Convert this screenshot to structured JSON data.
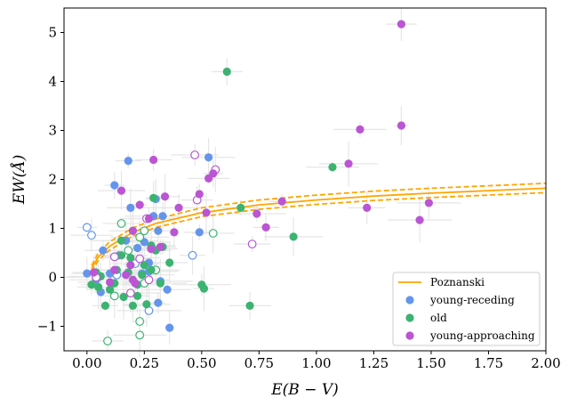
{
  "chart_data": {
    "type": "scatter",
    "title": "",
    "xlabel": "E(B − V)",
    "ylabel": "EW(Å)",
    "xlim": [
      -0.1,
      2.0
    ],
    "ylim": [
      -1.5,
      5.5
    ],
    "xticks": [
      "0.00",
      "0.25",
      "0.50",
      "0.75",
      "1.00",
      "1.25",
      "1.50",
      "1.75",
      "2.00"
    ],
    "yticks": [
      "−1",
      "0",
      "1",
      "2",
      "3",
      "4",
      "5"
    ],
    "grid": false,
    "legend_position": "bottom-right",
    "legend": [
      "Poznanski",
      "young-receding",
      "old",
      "young-approaching"
    ],
    "colors": {
      "poznanski": "#ffa500",
      "young_receding": "#6495ed",
      "old": "#3cb371",
      "young_approaching": "#ba55d3",
      "errorbar": "#e6e6e6"
    },
    "fit_line": {
      "name": "Poznanski",
      "description_type": "log-relation with upper and lower dashed bounds",
      "x": [
        0.02,
        0.05,
        0.1,
        0.2,
        0.3,
        0.5,
        0.75,
        1.0,
        1.25,
        1.5,
        1.75,
        2.0
      ],
      "y": [
        0.18,
        0.42,
        0.64,
        0.92,
        1.1,
        1.32,
        1.48,
        1.58,
        1.66,
        1.72,
        1.77,
        1.82
      ],
      "y_upper": [
        0.24,
        0.5,
        0.73,
        1.01,
        1.19,
        1.42,
        1.58,
        1.68,
        1.76,
        1.82,
        1.87,
        1.92
      ],
      "y_lower": [
        0.12,
        0.35,
        0.56,
        0.84,
        1.02,
        1.24,
        1.39,
        1.49,
        1.57,
        1.63,
        1.68,
        1.73
      ]
    },
    "series": [
      {
        "name": "young-receding",
        "filled": [
          [
            0.0,
            0.08
          ],
          [
            0.04,
            -0.05
          ],
          [
            0.06,
            -0.3
          ],
          [
            0.07,
            0.55
          ],
          [
            0.1,
            0.08
          ],
          [
            0.12,
            1.88
          ],
          [
            0.14,
            0.45
          ],
          [
            0.17,
            0.75
          ],
          [
            0.18,
            2.38
          ],
          [
            0.19,
            1.42
          ],
          [
            0.22,
            0.6
          ],
          [
            0.24,
            0.08
          ],
          [
            0.25,
            0.72
          ],
          [
            0.27,
            0.3
          ],
          [
            0.28,
            0.6
          ],
          [
            0.29,
            1.25
          ],
          [
            0.3,
            1.6
          ],
          [
            0.31,
            0.95
          ],
          [
            0.32,
            -0.08
          ],
          [
            0.33,
            1.25
          ],
          [
            0.35,
            -0.25
          ],
          [
            0.36,
            -1.03
          ],
          [
            0.49,
            0.92
          ],
          [
            0.53,
            2.45
          ],
          [
            0.31,
            -0.52
          ],
          [
            0.2,
            0.95
          ],
          [
            0.27,
            0.12
          ]
        ],
        "hollow": [
          [
            0.0,
            1.02
          ],
          [
            0.02,
            0.86
          ],
          [
            0.27,
            -0.68
          ],
          [
            0.46,
            0.45
          ],
          [
            0.21,
            0.28
          ],
          [
            0.13,
            0.05
          ]
        ]
      },
      {
        "name": "old",
        "filled": [
          [
            0.61,
            4.2
          ],
          [
            1.07,
            2.25
          ],
          [
            0.29,
            1.62
          ],
          [
            0.67,
            1.42
          ],
          [
            0.9,
            0.83
          ],
          [
            0.02,
            -0.15
          ],
          [
            0.05,
            -0.2
          ],
          [
            0.06,
            0.02
          ],
          [
            0.08,
            -0.58
          ],
          [
            0.1,
            -0.25
          ],
          [
            0.12,
            -0.12
          ],
          [
            0.13,
            0.15
          ],
          [
            0.15,
            0.45
          ],
          [
            0.16,
            -0.4
          ],
          [
            0.18,
            0.1
          ],
          [
            0.19,
            0.4
          ],
          [
            0.2,
            -0.58
          ],
          [
            0.22,
            -0.15
          ],
          [
            0.24,
            0.05
          ],
          [
            0.25,
            0.25
          ],
          [
            0.26,
            -0.55
          ],
          [
            0.28,
            0.15
          ],
          [
            0.3,
            0.55
          ],
          [
            0.32,
            -0.12
          ],
          [
            0.33,
            0.62
          ],
          [
            0.36,
            0.3
          ],
          [
            0.5,
            -0.15
          ],
          [
            0.51,
            -0.23
          ],
          [
            0.71,
            -0.58
          ],
          [
            0.15,
            0.75
          ],
          [
            0.22,
            -0.38
          ],
          [
            0.28,
            0.65
          ],
          [
            0.04,
            0.1
          ]
        ],
        "hollow": [
          [
            0.09,
            -1.3
          ],
          [
            0.23,
            -1.18
          ],
          [
            0.23,
            -0.9
          ],
          [
            0.15,
            1.1
          ],
          [
            0.23,
            0.82
          ],
          [
            0.25,
            0.95
          ],
          [
            0.55,
            0.9
          ],
          [
            0.18,
            0.55
          ],
          [
            0.12,
            -0.38
          ],
          [
            0.3,
            0.15
          ],
          [
            0.25,
            -0.12
          ]
        ]
      },
      {
        "name": "young-approaching",
        "filled": [
          [
            1.37,
            5.17
          ],
          [
            1.19,
            3.02
          ],
          [
            1.37,
            3.1
          ],
          [
            0.29,
            2.4
          ],
          [
            1.14,
            2.32
          ],
          [
            0.55,
            2.12
          ],
          [
            0.53,
            2.02
          ],
          [
            1.49,
            1.52
          ],
          [
            0.85,
            1.55
          ],
          [
            0.15,
            1.77
          ],
          [
            0.49,
            1.7
          ],
          [
            0.34,
            1.65
          ],
          [
            0.4,
            1.42
          ],
          [
            0.23,
            1.48
          ],
          [
            1.22,
            1.42
          ],
          [
            0.74,
            1.3
          ],
          [
            0.52,
            1.32
          ],
          [
            0.27,
            1.2
          ],
          [
            1.45,
            1.17
          ],
          [
            0.78,
            1.02
          ],
          [
            0.2,
            0.95
          ],
          [
            0.38,
            0.92
          ],
          [
            0.32,
            0.62
          ],
          [
            0.28,
            0.58
          ],
          [
            0.19,
            0.25
          ],
          [
            0.12,
            0.15
          ],
          [
            0.17,
            0.05
          ],
          [
            0.2,
            -0.05
          ],
          [
            0.03,
            0.1
          ],
          [
            0.1,
            -0.1
          ],
          [
            0.21,
            -0.12
          ]
        ],
        "hollow": [
          [
            0.47,
            2.5
          ],
          [
            0.56,
            2.2
          ],
          [
            0.48,
            1.58
          ],
          [
            0.26,
            1.2
          ],
          [
            0.23,
            0.38
          ],
          [
            0.72,
            0.68
          ],
          [
            0.19,
            -0.32
          ],
          [
            0.12,
            0.42
          ],
          [
            0.27,
            -0.05
          ],
          [
            0.04,
            0.0
          ]
        ]
      }
    ]
  }
}
